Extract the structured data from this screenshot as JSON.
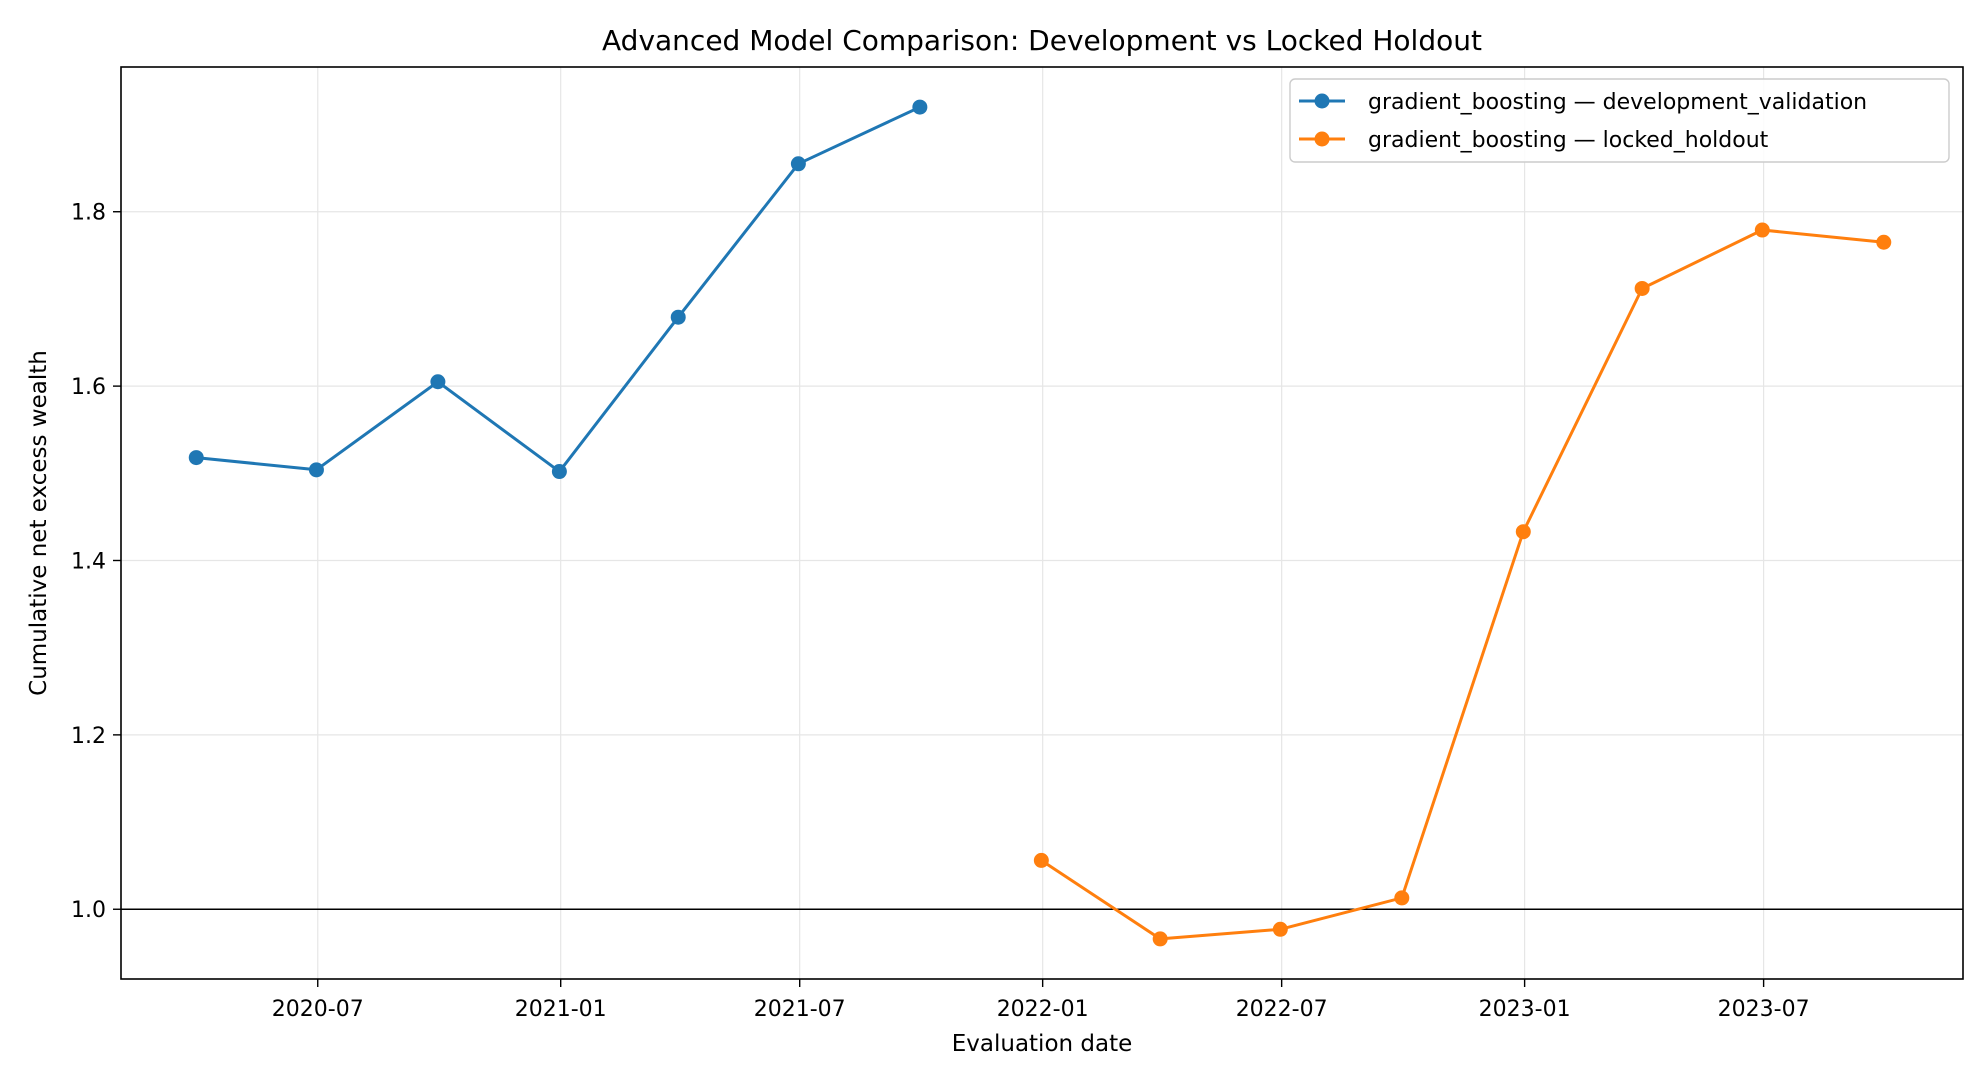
{
  "chart_data": {
    "type": "line",
    "title": "Advanced Model Comparison: Development vs Locked Holdout",
    "xlabel": "Evaluation date",
    "ylabel": "Cumulative net excess wealth",
    "xlim": [
      "2020-02-03",
      "2023-11-29"
    ],
    "ylim": [
      0.92,
      1.966
    ],
    "x_ticks": [
      "2020-07",
      "2021-01",
      "2021-07",
      "2022-01",
      "2022-07",
      "2023-01",
      "2023-07"
    ],
    "y_ticks": [
      "1.0",
      "1.2",
      "1.4",
      "1.6",
      "1.8"
    ],
    "reference_line": 1.0,
    "grid": true,
    "legend_position": "upper right",
    "series": [
      {
        "name": "gradient_boosting — development_validation",
        "color": "#1f77b4",
        "points": [
          {
            "x": "2020-03-31",
            "y": 1.518
          },
          {
            "x": "2020-06-30",
            "y": 1.504
          },
          {
            "x": "2020-09-30",
            "y": 1.605
          },
          {
            "x": "2020-12-31",
            "y": 1.502
          },
          {
            "x": "2021-03-31",
            "y": 1.679
          },
          {
            "x": "2021-06-30",
            "y": 1.855
          },
          {
            "x": "2021-09-30",
            "y": 1.92
          }
        ]
      },
      {
        "name": "gradient_boosting — locked_holdout",
        "color": "#ff7f0e",
        "points": [
          {
            "x": "2021-12-31",
            "y": 1.056
          },
          {
            "x": "2022-03-31",
            "y": 0.966
          },
          {
            "x": "2022-06-30",
            "y": 0.977
          },
          {
            "x": "2022-09-30",
            "y": 1.013
          },
          {
            "x": "2022-12-31",
            "y": 1.433
          },
          {
            "x": "2023-03-31",
            "y": 1.712
          },
          {
            "x": "2023-06-30",
            "y": 1.779
          },
          {
            "x": "2023-09-30",
            "y": 1.765
          }
        ]
      }
    ]
  }
}
